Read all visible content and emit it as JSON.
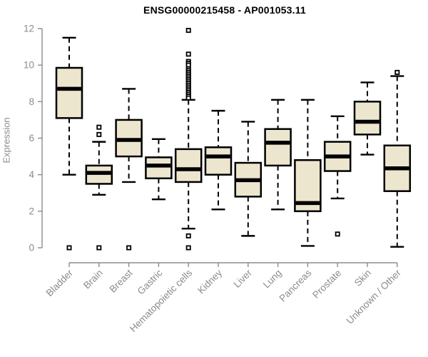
{
  "header": {
    "title": "ENSG00000215458 - AP001053.11"
  },
  "chart_data": {
    "type": "boxplot",
    "title": "ENSG00000215458 - AP001053.11",
    "subtitle": "",
    "xlabel": "",
    "ylabel": "Expression",
    "ylim": [
      0,
      12
    ],
    "yticks": [
      0,
      2,
      4,
      6,
      8,
      10,
      12
    ],
    "grid": false,
    "legend": false,
    "categories": [
      "Bladder",
      "Brain",
      "Breast",
      "Gastric",
      "Hematopoietic cells",
      "Kidney",
      "Liver",
      "Lung",
      "Pancreas",
      "Prostate",
      "Skin",
      "Unknown / Other"
    ],
    "series": [
      {
        "name": "Bladder",
        "whisker_low": 4.0,
        "q1": 7.1,
        "median": 8.7,
        "q3": 9.85,
        "whisker_high": 11.5,
        "outliers": [
          0.0
        ]
      },
      {
        "name": "Brain",
        "whisker_low": 2.9,
        "q1": 3.5,
        "median": 4.1,
        "q3": 4.5,
        "whisker_high": 5.8,
        "outliers": [
          6.6,
          6.2,
          0.0
        ]
      },
      {
        "name": "Breast",
        "whisker_low": 3.6,
        "q1": 5.0,
        "median": 5.9,
        "q3": 7.0,
        "whisker_high": 8.7,
        "outliers": [
          0.0
        ]
      },
      {
        "name": "Gastric",
        "whisker_low": 2.65,
        "q1": 3.8,
        "median": 4.5,
        "q3": 4.95,
        "whisker_high": 5.95,
        "outliers": []
      },
      {
        "name": "Hematopoietic cells",
        "whisker_low": 1.05,
        "q1": 3.6,
        "median": 4.3,
        "q3": 5.4,
        "whisker_high": 8.1,
        "outliers": [
          11.9,
          10.6,
          10.2,
          10.1,
          10.0,
          9.8,
          9.7,
          9.6,
          9.5,
          9.4,
          9.3,
          9.2,
          9.1,
          9.0,
          8.9,
          8.8,
          8.7,
          8.6,
          8.5,
          8.4,
          8.3,
          8.2,
          0.65,
          0.0
        ]
      },
      {
        "name": "Kidney",
        "whisker_low": 2.1,
        "q1": 4.0,
        "median": 5.0,
        "q3": 5.5,
        "whisker_high": 7.5,
        "outliers": []
      },
      {
        "name": "Liver",
        "whisker_low": 0.65,
        "q1": 2.8,
        "median": 3.7,
        "q3": 4.65,
        "whisker_high": 6.9,
        "outliers": []
      },
      {
        "name": "Lung",
        "whisker_low": 2.1,
        "q1": 4.5,
        "median": 5.75,
        "q3": 6.5,
        "whisker_high": 8.1,
        "outliers": []
      },
      {
        "name": "Pancreas",
        "whisker_low": 0.1,
        "q1": 2.0,
        "median": 2.45,
        "q3": 4.8,
        "whisker_high": 8.1,
        "outliers": []
      },
      {
        "name": "Prostate",
        "whisker_low": 2.7,
        "q1": 4.2,
        "median": 5.0,
        "q3": 5.8,
        "whisker_high": 7.2,
        "outliers": [
          0.75
        ]
      },
      {
        "name": "Skin",
        "whisker_low": 5.1,
        "q1": 6.2,
        "median": 6.9,
        "q3": 8.0,
        "whisker_high": 9.05,
        "outliers": []
      },
      {
        "name": "Unknown / Other",
        "whisker_low": 0.05,
        "q1": 3.1,
        "median": 4.35,
        "q3": 5.6,
        "whisker_high": 9.4,
        "outliers": [
          9.6
        ]
      }
    ],
    "style": {
      "box_fill": "#ede6cf",
      "box_border": "#000000",
      "median_color": "#000000",
      "whisker_style": "dashed",
      "outlier_marker": "open-square",
      "axis_color": "#8b8b8b",
      "tick_label_color": "#8b8b8b",
      "title_color": "#000000",
      "background": "#ffffff"
    }
  }
}
